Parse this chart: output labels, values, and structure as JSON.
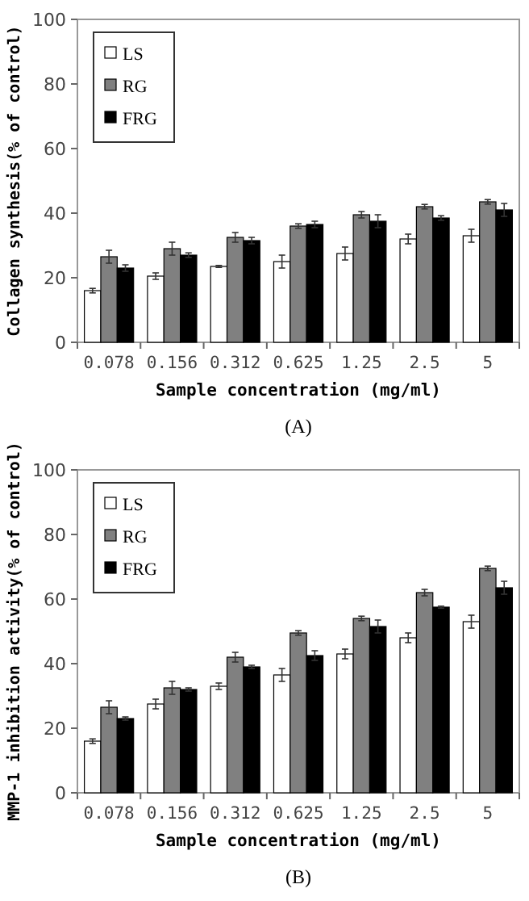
{
  "chart_data": [
    {
      "type": "bar",
      "xlabel": "Sample concentration (mg/ml)",
      "ylabel": "Collagen synthesis(% of control)",
      "annotations": [
        "(A)"
      ],
      "categories": [
        "0.078",
        "0.156",
        "0.312",
        "0.625",
        "1.25",
        "2.5",
        "5"
      ],
      "ylim": [
        0,
        100
      ],
      "yticks": [
        0,
        20,
        40,
        60,
        80,
        100
      ],
      "legend": "top left",
      "series": [
        {
          "name": "LS",
          "color": "#ffffff",
          "values": [
            16,
            20.5,
            23.5,
            25,
            27.5,
            32,
            33
          ],
          "errors": [
            0.7,
            1,
            0.3,
            2,
            2,
            1.5,
            2
          ]
        },
        {
          "name": "RG",
          "color": "#808080",
          "values": [
            26.5,
            29,
            32.5,
            36,
            39.5,
            42,
            43.5
          ],
          "errors": [
            2,
            2,
            1.5,
            0.7,
            1,
            0.7,
            0.7
          ]
        },
        {
          "name": "FRG",
          "color": "#000000",
          "values": [
            23,
            27,
            31.5,
            36.5,
            37.5,
            38.5,
            41
          ],
          "errors": [
            1,
            0.7,
            1,
            1,
            2,
            0.7,
            2
          ]
        }
      ]
    },
    {
      "type": "bar",
      "xlabel": "Sample concentration (mg/ml)",
      "ylabel": "MMP-1 inhibition activity(% of control)",
      "annotations": [
        "(B)"
      ],
      "categories": [
        "0.078",
        "0.156",
        "0.312",
        "0.625",
        "1.25",
        "2.5",
        "5"
      ],
      "ylim": [
        0,
        100
      ],
      "yticks": [
        0,
        20,
        40,
        60,
        80,
        100
      ],
      "legend": "top left",
      "series": [
        {
          "name": "LS",
          "color": "#ffffff",
          "values": [
            16,
            27.5,
            33,
            36.5,
            43,
            48,
            53
          ],
          "errors": [
            0.7,
            1.5,
            1,
            2,
            1.5,
            1.5,
            2
          ]
        },
        {
          "name": "RG",
          "color": "#808080",
          "values": [
            26.5,
            32.5,
            42,
            49.5,
            54,
            62,
            69.5
          ],
          "errors": [
            2,
            2,
            1.5,
            0.7,
            0.7,
            1,
            0.7
          ]
        },
        {
          "name": "FRG",
          "color": "#000000",
          "values": [
            23,
            32,
            39,
            42.5,
            51.5,
            57.5,
            63.5
          ],
          "errors": [
            0.5,
            0.5,
            0.5,
            1.5,
            2,
            0.3,
            2
          ]
        }
      ]
    }
  ]
}
